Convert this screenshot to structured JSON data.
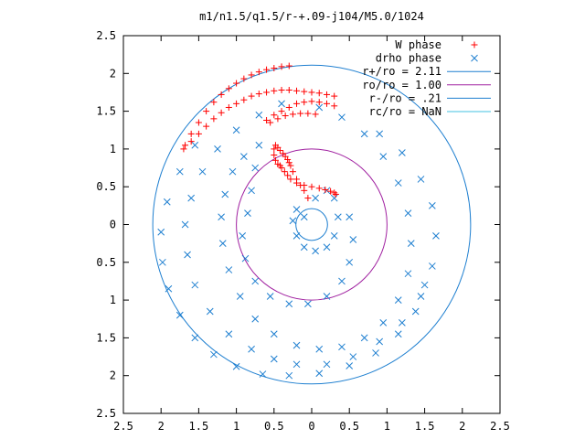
{
  "chart_data": {
    "type": "scatter",
    "title": "m1/n1.5/q1.5/r-+.09-j104/M5.0/1024",
    "xlabel": "",
    "ylabel": "",
    "xlim": [
      -2.5,
      2.5
    ],
    "ylim": [
      -2.5,
      2.5
    ],
    "x_ticks": [
      "2.5",
      "2",
      "1.5",
      "1",
      "0.5",
      "0",
      "0.5",
      "1",
      "1.5",
      "2",
      "2.5"
    ],
    "y_ticks": [
      "2.5",
      "2",
      "1.5",
      "1",
      "0.5",
      "0",
      "0.5",
      "1",
      "1.5",
      "2",
      "2.5"
    ],
    "grid": false,
    "legend_position": "top-right",
    "series": [
      {
        "name": "W phase",
        "marker": "plus",
        "color": "#ff0000",
        "x": [
          -0.05,
          -0.1,
          -0.15,
          -0.2,
          -0.25,
          -0.28,
          -0.3,
          -0.32,
          -0.35,
          -0.38,
          -0.42,
          -0.45,
          -0.48,
          -0.5,
          -0.5,
          -0.48,
          -0.45,
          -0.42,
          -0.4,
          -0.36,
          -0.32,
          -0.28,
          -0.2,
          -0.1,
          0.0,
          0.1,
          0.18,
          0.25,
          0.3,
          0.32,
          -1.68,
          -1.6,
          -1.5,
          -1.4,
          -1.3,
          -1.2,
          -1.1,
          -1.0,
          -0.9,
          -0.8,
          -0.7,
          -0.6,
          -0.5,
          -0.4,
          -0.3,
          -1.7,
          -1.6,
          -1.5,
          -1.4,
          -1.3,
          -1.2,
          -1.1,
          -1.0,
          -0.9,
          -0.8,
          -0.7,
          -0.6,
          -0.5,
          -0.4,
          -0.3,
          -0.2,
          -0.1,
          0.0,
          0.1,
          0.2,
          0.3,
          -0.6,
          -0.5,
          -0.4,
          -0.3,
          -0.2,
          -0.1,
          0.0,
          0.1,
          0.2,
          0.3,
          -0.55,
          -0.45,
          -0.35,
          -0.25,
          -0.15,
          -0.05,
          0.05
        ],
        "y": [
          0.35,
          0.45,
          0.52,
          0.6,
          0.7,
          0.78,
          0.82,
          0.86,
          0.9,
          0.94,
          0.98,
          1.02,
          1.05,
          1.0,
          0.92,
          0.85,
          0.8,
          0.78,
          0.75,
          0.7,
          0.65,
          0.6,
          0.55,
          0.52,
          0.5,
          0.48,
          0.46,
          0.44,
          0.42,
          0.4,
          1.05,
          1.2,
          1.35,
          1.5,
          1.62,
          1.72,
          1.8,
          1.87,
          1.93,
          1.98,
          2.02,
          2.05,
          2.07,
          2.09,
          2.1,
          1.0,
          1.1,
          1.2,
          1.3,
          1.4,
          1.48,
          1.55,
          1.6,
          1.65,
          1.7,
          1.73,
          1.75,
          1.77,
          1.78,
          1.78,
          1.77,
          1.76,
          1.75,
          1.74,
          1.72,
          1.7,
          1.38,
          1.45,
          1.5,
          1.55,
          1.6,
          1.62,
          1.63,
          1.62,
          1.6,
          1.57,
          1.35,
          1.4,
          1.44,
          1.46,
          1.47,
          1.47,
          1.46
        ]
      },
      {
        "name": "drho phase",
        "marker": "cross",
        "color": "#1e7fd0",
        "x": [
          -0.1,
          0.05,
          0.2,
          0.3,
          0.35,
          0.3,
          0.2,
          0.05,
          -0.1,
          -0.2,
          -0.25,
          -0.2,
          0.5,
          0.55,
          0.5,
          0.4,
          0.2,
          -0.05,
          -0.3,
          -0.55,
          -0.75,
          -0.88,
          -0.92,
          -0.85,
          -0.8,
          -0.75,
          -0.7,
          -0.9,
          -1.05,
          -1.15,
          -1.2,
          -1.18,
          -1.1,
          -0.95,
          -0.75,
          -0.5,
          -0.2,
          0.1,
          0.4,
          0.7,
          0.95,
          1.15,
          1.28,
          1.32,
          1.28,
          1.15,
          0.95,
          0.7,
          0.4,
          0.1,
          -0.4,
          -0.7,
          -1.0,
          -1.25,
          -1.45,
          -1.6,
          -1.68,
          -1.65,
          -1.55,
          -1.35,
          -1.1,
          -0.8,
          -0.5,
          -0.2,
          0.2,
          0.55,
          0.9,
          1.2,
          1.45,
          1.6,
          1.65,
          1.6,
          1.45,
          1.2,
          0.9,
          -1.55,
          -1.75,
          -1.92,
          -2.0,
          -1.98,
          -1.9,
          -1.75,
          -1.55,
          -1.3,
          -1.0,
          -0.65,
          -0.3,
          0.1,
          0.5,
          0.85,
          1.15,
          1.38,
          1.5
        ],
        "y": [
          0.1,
          0.35,
          0.45,
          0.35,
          0.1,
          -0.15,
          -0.3,
          -0.35,
          -0.3,
          -0.15,
          0.05,
          0.2,
          0.1,
          -0.2,
          -0.5,
          -0.75,
          -0.95,
          -1.05,
          -1.05,
          -0.95,
          -0.75,
          -0.45,
          -0.15,
          0.15,
          0.45,
          0.75,
          1.05,
          0.9,
          0.7,
          0.4,
          0.1,
          -0.25,
          -0.6,
          -0.95,
          -1.25,
          -1.45,
          -1.6,
          -1.65,
          -1.62,
          -1.5,
          -1.3,
          -1.0,
          -0.65,
          -0.25,
          0.15,
          0.55,
          0.9,
          1.2,
          1.42,
          1.55,
          1.6,
          1.45,
          1.25,
          1.0,
          0.7,
          0.35,
          0.0,
          -0.4,
          -0.8,
          -1.15,
          -1.45,
          -1.65,
          -1.78,
          -1.85,
          -1.85,
          -1.75,
          -1.55,
          -1.3,
          -0.95,
          -0.55,
          -0.15,
          0.25,
          0.6,
          0.95,
          1.2,
          1.05,
          0.7,
          0.3,
          -0.1,
          -0.5,
          -0.85,
          -1.2,
          -1.5,
          -1.72,
          -1.88,
          -1.98,
          -2.0,
          -1.97,
          -1.87,
          -1.7,
          -1.45,
          -1.15,
          -0.8
        ]
      }
    ],
    "circles": [
      {
        "name": "r+/ro = 2.11",
        "r": 2.11,
        "color": "#1e7fd0"
      },
      {
        "name": "ro/ro = 1.00",
        "r": 1.0,
        "color": "#a020a0"
      },
      {
        "name": "r-/ro = .21",
        "r": 0.21,
        "color": "#1e7fd0"
      },
      {
        "name": "rc/ro = NaN",
        "r": null,
        "color": "#40c0e0"
      }
    ]
  }
}
